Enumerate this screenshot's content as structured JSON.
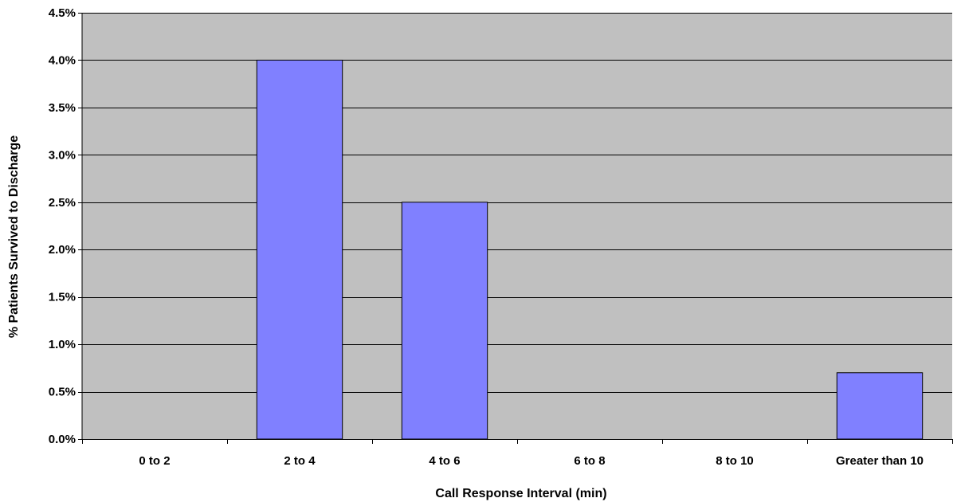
{
  "chart_data": {
    "type": "bar",
    "title": "",
    "xlabel": "Call Response Interval (min)",
    "ylabel": "% Patients Survived to Discharge",
    "categories": [
      "0 to 2",
      "2 to 4",
      "4 to 6",
      "6 to 8",
      "8 to 10",
      "Greater than 10"
    ],
    "values": [
      0,
      4.0,
      2.5,
      0,
      0,
      0.7
    ],
    "ylim": [
      0,
      4.5
    ],
    "yticks": [
      0,
      0.5,
      1.0,
      1.5,
      2.0,
      2.5,
      3.0,
      3.5,
      4.0,
      4.5
    ],
    "ytick_labels": [
      "0.0%",
      "0.5%",
      "1.0%",
      "1.5%",
      "2.0%",
      "2.5%",
      "3.0%",
      "3.5%",
      "4.0%",
      "4.5%"
    ],
    "grid": true,
    "legend": "none",
    "colors": {
      "plot_background": "#c0c0c0",
      "bar_fill": "#8080ff",
      "bar_stroke": "#000000",
      "gridline": "#000000"
    }
  }
}
